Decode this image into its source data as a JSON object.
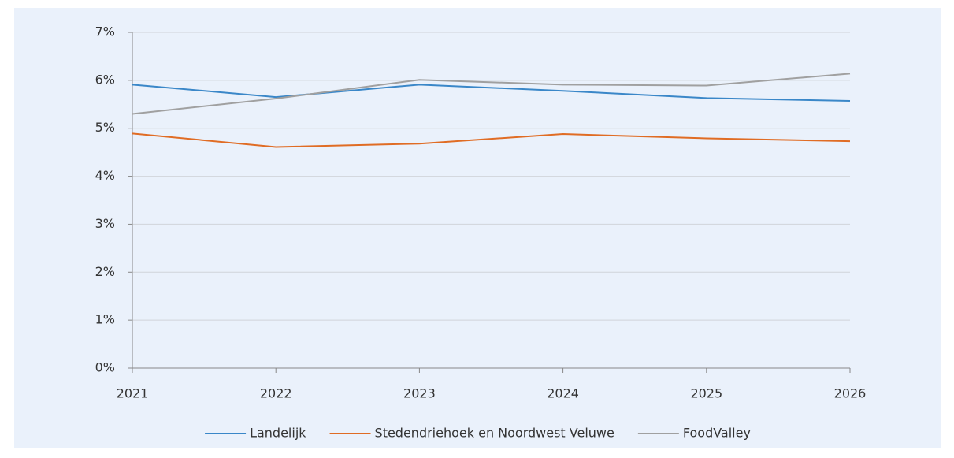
{
  "chart_data": {
    "type": "line",
    "x": [
      2021,
      2022,
      2023,
      2024,
      2025,
      2026
    ],
    "xlim": [
      2021,
      2026
    ],
    "xticks": [
      2021,
      2022,
      2023,
      2024,
      2025,
      2026
    ],
    "ylim": [
      0,
      7
    ],
    "yticks": [
      {
        "value": 0,
        "label": "0%"
      },
      {
        "value": 1,
        "label": "1%"
      },
      {
        "value": 2,
        "label": "2%"
      },
      {
        "value": 3,
        "label": "3%"
      },
      {
        "value": 4,
        "label": "4%"
      },
      {
        "value": 5,
        "label": "5%"
      },
      {
        "value": 6,
        "label": "6%"
      },
      {
        "value": 7,
        "label": "7%"
      }
    ],
    "grid": true,
    "legend": "bottom",
    "series": [
      {
        "name": "Landelijk",
        "color": "#3a87c8",
        "values": [
          5.91,
          5.65,
          5.91,
          5.78,
          5.63,
          5.57
        ]
      },
      {
        "name": "Stedendriehoek en Noordwest Veluwe",
        "color": "#e06c24",
        "values": [
          4.89,
          4.61,
          4.68,
          4.88,
          4.79,
          4.73
        ]
      },
      {
        "name": "FoodValley",
        "color": "#a0a0a0",
        "values": [
          5.3,
          5.62,
          6.01,
          5.91,
          5.89,
          6.14
        ]
      }
    ]
  }
}
